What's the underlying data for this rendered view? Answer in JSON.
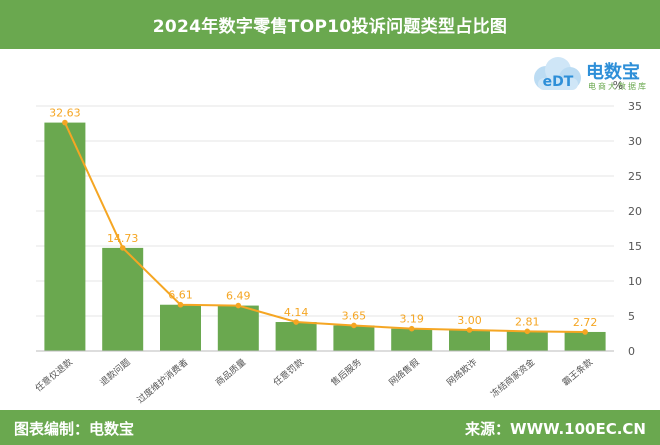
{
  "header": {
    "title": "2024年数字零售TOP10投诉问题类型占比图"
  },
  "logo": {
    "mark": "eDT",
    "brand": "电数宝",
    "tagline": "电商大数据库"
  },
  "footer": {
    "left": "图表编制：电数宝",
    "right": "来源：WWW.100EC.CN"
  },
  "colors": {
    "bar": "#6aa84f",
    "line": "#f5a623",
    "header": "#6aa84f",
    "label": "#f5a623"
  },
  "chart_data": {
    "type": "bar",
    "categories": [
      "任意仅退款",
      "退款问题",
      "过度维护消费者",
      "商品质量",
      "任意罚款",
      "售后服务",
      "网络售假",
      "网络欺诈",
      "冻结商家资金",
      "霸王条款"
    ],
    "values": [
      32.63,
      14.73,
      6.61,
      6.49,
      4.14,
      3.65,
      3.19,
      3.0,
      2.81,
      2.72
    ],
    "value_labels": [
      "32.63",
      "14.73",
      "6.61",
      "6.49",
      "4.14",
      "3.65",
      "3.19",
      "3.00",
      "2.81",
      "2.72"
    ],
    "line_overlay": true,
    "ylim": [
      0,
      35
    ],
    "yticks": [
      "0",
      "5",
      "10",
      "15",
      "20",
      "25",
      "30",
      "35"
    ],
    "ylabel": "%",
    "y_axis_side": "right",
    "grid": true
  }
}
